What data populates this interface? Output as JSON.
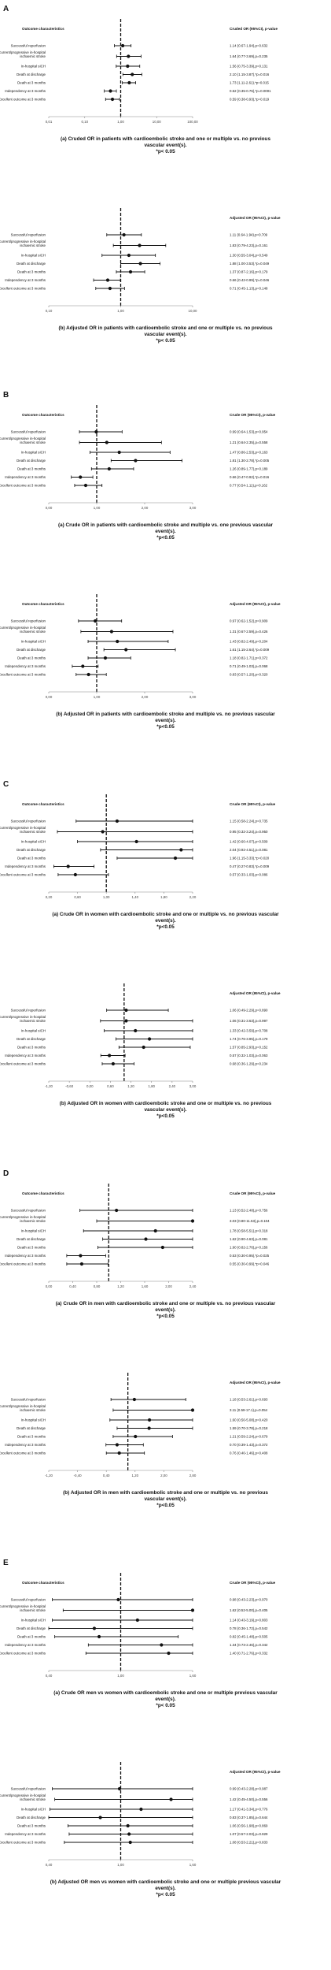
{
  "sections": [
    {
      "letter": "A",
      "panels": [
        0,
        1
      ]
    },
    {
      "letter": "B",
      "panels": [
        2,
        3
      ]
    },
    {
      "letter": "C",
      "panels": [
        4,
        5
      ]
    },
    {
      "letter": "D",
      "panels": [
        6,
        7
      ]
    },
    {
      "letter": "E",
      "panels": [
        8,
        9
      ]
    }
  ],
  "chart_data": [
    {
      "type": "forest",
      "header_left": "Outcome characteristics",
      "header_right": "Cruded OR (95%CI), p-value",
      "outcomes": [
        "Successful reperfusion",
        "Recurrent/progressive in-hospital ischaemic stroke",
        "In-hospital sICH",
        "Death at discharge",
        "Death at 3 months",
        "Independency at 3 months",
        "Excellent outcome at 3 months"
      ],
      "labels": [
        "1.14 (0.67-1.94),p=0.632",
        "1.64 (0.77-3.69),p=0.235",
        "1.56 (0.75-3.39),p=0.131",
        "2.10 (1.15-3.87),*p=0.016",
        "1.73 (1.11-2.61),*p=0.015",
        "0.52 (0.35-0.76),*p=0.0001",
        "0.59 (0.38-0.93),*p=0.019"
      ],
      "or": [
        1.14,
        1.64,
        1.56,
        2.1,
        1.73,
        0.52,
        0.59
      ],
      "lo": [
        0.67,
        0.77,
        0.75,
        1.15,
        1.11,
        0.35,
        0.38
      ],
      "hi": [
        1.94,
        3.69,
        3.39,
        3.87,
        2.61,
        0.76,
        0.93
      ],
      "axis_ticks": [
        "0,01",
        "0,10",
        "1,00",
        "10,00",
        "100,00"
      ],
      "axis_min": 0.01,
      "axis_max": 100,
      "ref": 1,
      "scale": "log",
      "caption": "(a) Cruded OR in patients with cardioembolic stroke and one or multiple vs. no previous vascular event(s).",
      "note": "*p< 0.05"
    },
    {
      "type": "forest",
      "header_left": "",
      "header_right": "Adjusted OR (95%CI), p-value",
      "outcomes": [
        "Successful reperfusion",
        "Recurrent/progressive in-hospital ischaemic stroke",
        "In-hospital sICH",
        "Death at discharge",
        "Death at 3 months",
        "Independency at 3 months",
        "Excellent outcome at 3 months"
      ],
      "labels": [
        "1.11 (0.64-1.94),p=0.709",
        "1.83 (0.79-4.23),p=0.161",
        "1.30 (0.55-3.04),p=0.549",
        "1.88 (1.00-3.53),*p=0.049",
        "1.37 (0.87-2.16),p=0.179",
        "0.66 (0.42-0.99),*p=0.046",
        "0.71 (0.45-1.13),p=0.148"
      ],
      "or": [
        1.11,
        1.83,
        1.3,
        1.88,
        1.37,
        0.66,
        0.71
      ],
      "lo": [
        0.64,
        0.79,
        0.55,
        1.0,
        0.87,
        0.42,
        0.45
      ],
      "hi": [
        1.94,
        4.23,
        3.04,
        3.53,
        2.16,
        0.99,
        1.13
      ],
      "axis_ticks": [
        "0,10",
        "1,00",
        "10,00"
      ],
      "axis_min": 0.1,
      "axis_max": 10,
      "ref": 1,
      "scale": "log",
      "caption": "(b) Adjusted OR in patients with cardioembolic stroke and one or multiple vs. no previous vascular event(s).",
      "note": "*p< 0.05"
    },
    {
      "type": "forest",
      "header_left": "Outcome characteristics",
      "header_right": "Crude OR (95%CI), p-value",
      "outcomes": [
        "Successful reperfusion",
        "Recurrent/progressive in-hospital ischaemic stroke",
        "In-hospital sICH",
        "Death at discharge",
        "Death at 3 months",
        "Independency at 3 months",
        "Excellent outcome at 3 months"
      ],
      "labels": [
        "0.99 (0.64-1.53),p=0.954",
        "1.21 (0.64-2.35),p=0.558",
        "1.47 (0.86-2.53),p=0.163",
        "1.81 (1.30-2.78),*p=0.005",
        "1.26 (0.89-1.77),p=0.189",
        "0.66 (0.47-0.92),*p=0.016",
        "0.77 (0.54-1.11),p=0.162"
      ],
      "or": [
        0.99,
        1.21,
        1.47,
        1.81,
        1.26,
        0.66,
        0.77
      ],
      "lo": [
        0.64,
        0.64,
        0.86,
        1.3,
        0.89,
        0.47,
        0.54
      ],
      "hi": [
        1.53,
        2.35,
        2.53,
        2.78,
        1.77,
        0.92,
        1.11
      ],
      "axis_ticks": [
        "0,00",
        "1,00",
        "2,00",
        "3,00"
      ],
      "axis_min": 0,
      "axis_max": 3,
      "ref": 1,
      "scale": "linear",
      "caption": "(a) Crude OR in patients with cardioembolic stroke and multiple vs. one previous vascular event(s).",
      "note": "*p<0.05"
    },
    {
      "type": "forest",
      "header_left": "Outcome characteristics",
      "header_right": "Adjusted OR (95%CI), p-value",
      "outcomes": [
        "Successful reperfusion",
        "Recurrent/progressive in-hospital ischaemic stroke",
        "In-hospital sICH",
        "Death at discharge",
        "Death at 3 months",
        "Independency at 3 months",
        "Excellent outcome at 3 months"
      ],
      "labels": [
        "0.97 (0.62-1.52),p=0.909",
        "1.31 (0.67-2.59),p=0.426",
        "1.43 (0.82-2.49),p=0.204",
        "1.61 (1.15-2.64),*p=0.009",
        "1.18 (0.82-1.71),p=0.372",
        "0.71 (0.49-1.03),p=0.068",
        "0.83 (0.57-1.20),p=0.320"
      ],
      "or": [
        0.97,
        1.31,
        1.43,
        1.61,
        1.18,
        0.71,
        0.83
      ],
      "lo": [
        0.62,
        0.67,
        0.82,
        1.15,
        0.82,
        0.49,
        0.57
      ],
      "hi": [
        1.52,
        2.59,
        2.49,
        2.64,
        1.71,
        1.03,
        1.2
      ],
      "axis_ticks": [
        "0,00",
        "1,00",
        "2,00",
        "3,00"
      ],
      "axis_min": 0,
      "axis_max": 3,
      "ref": 1,
      "scale": "linear",
      "caption": "(b) Adjusted OR in patients with cardioembolic stroke and multiple vs. no previous vascular event(s).",
      "note": "*p<0.05"
    },
    {
      "type": "forest",
      "header_left": "Outcome characteristics",
      "header_right": "Crude OR (95%CI), p-value",
      "outcomes": [
        "Successful reperfusion",
        "Recurrent/progressive in-hospital ischaemic stroke",
        "In-hospital sICH",
        "Death at discharge",
        "Death at 3 months",
        "Independency at 3 months",
        "Excellent outcome at 3 months"
      ],
      "labels": [
        "1.15 (0.58-2.24),p=0.735",
        "0.95 (0.32-3.24),p=0.950",
        "1.42 (0.60-4.07),p=0.509",
        "2.04 (0.92-4.51),p=0.081",
        "1.96 (1.15-3.33),*p=0.020",
        "0.47 (0.27-0.83),*p=0.009",
        "0.57 (0.33-1.03),p=0.086"
      ],
      "or": [
        1.15,
        0.95,
        1.42,
        2.04,
        1.96,
        0.47,
        0.57
      ],
      "lo": [
        0.58,
        0.32,
        0.6,
        0.92,
        1.15,
        0.27,
        0.33
      ],
      "hi": [
        2.24,
        3.24,
        4.07,
        4.51,
        3.33,
        0.83,
        1.03
      ],
      "axis_ticks": [
        "0,20",
        "0,60",
        "1,00",
        "1,40",
        "1,80",
        "2,20"
      ],
      "axis_min": 0.2,
      "axis_max": 2.2,
      "ref": 1,
      "scale": "linear",
      "caption": "(a) Crude OR in women with cardioembolic stroke and one or multiple vs. no previous vascular event(s).",
      "note": "*p<0.05"
    },
    {
      "type": "forest",
      "header_left": "",
      "header_right": "Adjusted OR (95%CI), p-value",
      "outcomes": [
        "Successful reperfusion",
        "Recurrent/progressive in-hospital ischaemic stroke",
        "In-hospital sICH",
        "Death at discharge",
        "Death at 3 months",
        "Independency at 3 months",
        "Excellent outcome at 3 months"
      ],
      "labels": [
        "1.06 (0.49-2.29),p=0.890",
        "1.06 (0.31-3.63),p=0.997",
        "1.33 (0.42-3.59),p=0.708",
        "1.74 (0.76-3.95),p=0.179",
        "1.57 (0.85-2.93),p=0.152",
        "0.57 (0.32-1.03),p=0.063",
        "0.68 (0.36-1.29),p=0.234"
      ],
      "or": [
        1.06,
        1.06,
        1.33,
        1.74,
        1.57,
        0.57,
        0.68
      ],
      "lo": [
        0.49,
        0.31,
        0.42,
        0.76,
        0.85,
        0.32,
        0.36
      ],
      "hi": [
        2.29,
        3.63,
        3.59,
        3.95,
        2.93,
        1.03,
        1.29
      ],
      "axis_ticks": [
        "-1,20",
        "-0,60",
        "0,00",
        "0,60",
        "1,20",
        "1,80",
        "2,40",
        "3,00"
      ],
      "axis_min": -1.2,
      "axis_max": 3.0,
      "ref": 1,
      "scale": "linear",
      "caption": "(b) Adjusted OR in women with cardioembolic stroke and one or multiple vs. no previous vascular event(s).",
      "note": "*p<0.05"
    },
    {
      "type": "forest",
      "header_left": "Outcome characteristics",
      "header_right": "Crude OR (95%CI), p-value",
      "outcomes": [
        "Successful reperfusion",
        "Recurrent/progressive in-hospital ischaemic stroke",
        "In-hospital sICH",
        "Death at discharge",
        "Death at 3 months",
        "Independency at 3 months",
        "Excellent outcome at 3 months"
      ],
      "labels": [
        "1.13 (0.52-2.48),p=0.756",
        "3.03 (0.80-11.53),p=0.104",
        "1.78 (0.58-5.51),p=0.318",
        "1.62 (0.90-4.63),p=0.081",
        "1.90 (0.82-2.76),p=0.156",
        "0.53 (0.30-0.95),*p=0.025",
        "0.55 (0.30-0.99),*p=0.046"
      ],
      "or": [
        1.13,
        3.03,
        1.78,
        1.62,
        1.9,
        0.53,
        0.55
      ],
      "lo": [
        0.52,
        0.8,
        0.58,
        0.9,
        0.82,
        0.3,
        0.3
      ],
      "hi": [
        2.48,
        11.53,
        5.51,
        4.63,
        2.76,
        0.95,
        0.99
      ],
      "axis_ticks": [
        "0,00",
        "0,40",
        "0,80",
        "1,20",
        "1,60",
        "2,00",
        "2,40"
      ],
      "axis_min": 0,
      "axis_max": 2.4,
      "ref": 1,
      "scale": "linear",
      "caption": "(a) Crude OR in men with cardioembolic stroke and one or multiple vs. no previous vascular event(s).",
      "note": "*p<0.05"
    },
    {
      "type": "forest",
      "header_left": "",
      "header_right": "Adjusted OR (95%CI), p-value",
      "outcomes": [
        "Successful reperfusion",
        "Recurrent/progressive in-hospital ischaemic stroke",
        "In-hospital sICH",
        "Death at discharge",
        "Death at 3 months",
        "Independency at 3 months",
        "Excellent outcome at 3 months"
      ],
      "labels": [
        "1.18 (0.53-2.61),p=0.693",
        "3.11 (0.59-17.1),p=0.054",
        "1.60 (0.50-5.08),p=0.420",
        "1.59 (0.70-3.78),p=0.218",
        "1.21 (0.59-2.24),p=0.679",
        "0.70 (0.39-1.43),p=0.372",
        "0.76 (0.40-1.46),p=0.408"
      ],
      "or": [
        1.18,
        3.11,
        1.6,
        1.59,
        1.21,
        0.7,
        0.76
      ],
      "lo": [
        0.53,
        0.59,
        0.5,
        0.7,
        0.59,
        0.39,
        0.4
      ],
      "hi": [
        2.61,
        17.1,
        5.08,
        3.78,
        2.24,
        1.43,
        1.46
      ],
      "axis_ticks": [
        "-1,20",
        "-0,40",
        "0,40",
        "1,20",
        "2,00",
        "2,80"
      ],
      "axis_min": -1.2,
      "axis_max": 2.8,
      "ref": 1,
      "scale": "linear",
      "caption": "(b) Adjusted OR in men with cardioembolic stroke and one or multiple vs. no previous vascular event(s).",
      "note": "*p<0.05"
    },
    {
      "type": "forest",
      "header_left": "Outcome characteristics",
      "header_right": "Crude OR (95%CI), p-value",
      "outcomes": [
        "Successful reperfusion",
        "Recurrent/progressive in-hospital ischaemic stroke",
        "In-hospital sICH",
        "Death at discharge",
        "Death at 3 months",
        "Independency at 3 months",
        "Excellent outcome at 3 months"
      ],
      "labels": [
        "0.98 (0.43-2.23),p=0.970",
        "1.62 (0.52-5.00),p=0.405",
        "1.14 (0.43-3.19),p=0.803",
        "0.78 (0.36-1.72),p=0.542",
        "0.82 (0.45-1.48),p=0.505",
        "1.34 (0.73-2.46),p=0.342",
        "1.40 (0.71-2.76),p=0.332"
      ],
      "or": [
        0.98,
        1.62,
        1.14,
        0.78,
        0.82,
        1.34,
        1.4
      ],
      "lo": [
        0.43,
        0.52,
        0.43,
        0.36,
        0.45,
        0.73,
        0.71
      ],
      "hi": [
        2.23,
        5.0,
        3.19,
        1.72,
        1.48,
        2.46,
        2.76
      ],
      "axis_ticks": [
        "0,40",
        "1,00",
        "1,60"
      ],
      "axis_min": 0.4,
      "axis_max": 1.6,
      "ref": 1,
      "scale": "linear",
      "caption": "(a) Crude OR men vs women with cardioembolic stroke and one or multiple previous vascular event(s).",
      "note": "*p< 0.05"
    },
    {
      "type": "forest",
      "header_left": "",
      "header_right": "Adjusted OR (95%CI), p-value",
      "outcomes": [
        "Successful reperfusion",
        "Recurrent/progressive in-hospital ischaemic stroke",
        "In-hospital sICH",
        "Death at discharge",
        "Death at 3 months",
        "Independency at 3 months",
        "Excellent outcome at 3 months"
      ],
      "labels": [
        "0.99 (0.43-2.28),p=0.987",
        "1.42 (0.45-4.50),p=0.556",
        "1.17 (0.41-3.34),p=0.776",
        "0.83 (0.37-1.85),p=0.644",
        "1.06 (0.56-1.98),p=0.869",
        "1.07 (0.57-2.03),p=0.829",
        "1.08 (0.53-2.21),p=0.833"
      ],
      "or": [
        0.99,
        1.42,
        1.17,
        0.83,
        1.06,
        1.07,
        1.08
      ],
      "lo": [
        0.43,
        0.45,
        0.41,
        0.37,
        0.56,
        0.57,
        0.53
      ],
      "hi": [
        2.28,
        4.5,
        3.34,
        1.85,
        1.98,
        2.03,
        2.21
      ],
      "axis_ticks": [
        "0,40",
        "1,00",
        "1,60"
      ],
      "axis_min": 0.4,
      "axis_max": 1.6,
      "ref": 1,
      "scale": "linear",
      "caption": "(b) Adjusted OR men vs women with cardioembolic stroke and one or multiple previous vascular event(s).",
      "note": "*p< 0.05"
    }
  ]
}
